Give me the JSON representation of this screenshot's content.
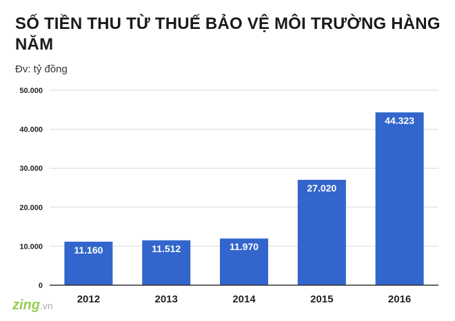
{
  "header": {
    "title": "SỐ TIỀN THU TỪ THUẾ BẢO VỆ MÔI TRƯỜNG HÀNG NĂM",
    "unit": "Đv: tỷ đồng"
  },
  "watermark": {
    "brand": "zing",
    "suffix": ".vn"
  },
  "colors": {
    "bar": "#3366cc",
    "label": "#ffffff",
    "axis": "#222222",
    "grid": "#d9d9d9"
  },
  "chart_data": {
    "type": "bar",
    "categories": [
      "2012",
      "2013",
      "2014",
      "2015",
      "2016"
    ],
    "values": [
      11160,
      11512,
      11970,
      27020,
      44323
    ],
    "value_labels": [
      "11.160",
      "11.512",
      "11.970",
      "27.020",
      "44.323"
    ],
    "yticks": [
      0,
      10000,
      20000,
      30000,
      40000,
      50000
    ],
    "ytick_labels": [
      "0",
      "10.000",
      "20.000",
      "30.000",
      "40.000",
      "50.000"
    ],
    "ylim": [
      0,
      50000
    ],
    "grid": true,
    "xlabel": "",
    "ylabel": ""
  }
}
